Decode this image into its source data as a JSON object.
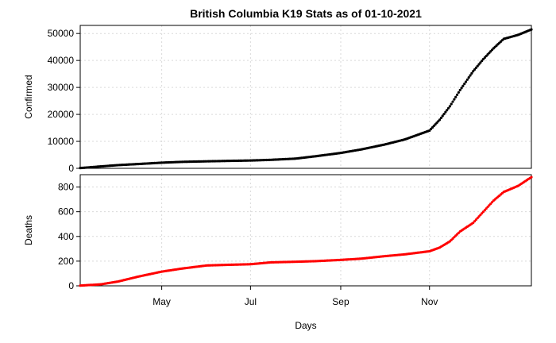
{
  "chart_data": {
    "title": "British Columbia K19 Stats as of 01-10-2021",
    "xlabel": "Days",
    "grid": true,
    "x_range": [
      "2021-03-06",
      "2022-01-10"
    ],
    "x_ticks": [
      {
        "date": "2021-05-01",
        "label": "May"
      },
      {
        "date": "2021-07-01",
        "label": "Jul"
      },
      {
        "date": "2021-09-01",
        "label": "Sep"
      },
      {
        "date": "2021-11-01",
        "label": "Nov"
      }
    ],
    "panels": [
      {
        "type": "scatter",
        "ylabel": "Confirmed",
        "color": "#000000",
        "ylim": [
          0,
          53000
        ],
        "y_ticks": [
          0,
          10000,
          20000,
          30000,
          40000,
          50000
        ],
        "points": [
          [
            "2021-03-06",
            100
          ],
          [
            "2021-03-20",
            700
          ],
          [
            "2021-04-01",
            1200
          ],
          [
            "2021-04-15",
            1600
          ],
          [
            "2021-05-01",
            2100
          ],
          [
            "2021-05-15",
            2400
          ],
          [
            "2021-06-01",
            2600
          ],
          [
            "2021-06-15",
            2750
          ],
          [
            "2021-07-01",
            2900
          ],
          [
            "2021-07-15",
            3150
          ],
          [
            "2021-08-01",
            3600
          ],
          [
            "2021-08-15",
            4500
          ],
          [
            "2021-09-01",
            5700
          ],
          [
            "2021-09-15",
            7000
          ],
          [
            "2021-10-01",
            8800
          ],
          [
            "2021-10-15",
            10700
          ],
          [
            "2021-11-01",
            14000
          ],
          [
            "2021-11-08",
            18000
          ],
          [
            "2021-11-15",
            23000
          ],
          [
            "2021-11-22",
            29000
          ],
          [
            "2021-12-01",
            36000
          ],
          [
            "2021-12-08",
            40500
          ],
          [
            "2021-12-15",
            44500
          ],
          [
            "2021-12-22",
            48000
          ],
          [
            "2022-01-01",
            49500
          ],
          [
            "2022-01-10",
            51500
          ]
        ]
      },
      {
        "type": "scatter",
        "ylabel": "Deaths",
        "color": "#ff0000",
        "ylim": [
          0,
          900
        ],
        "y_ticks": [
          0,
          200,
          400,
          600,
          800
        ],
        "points": [
          [
            "2021-03-06",
            2
          ],
          [
            "2021-03-20",
            12
          ],
          [
            "2021-04-01",
            35
          ],
          [
            "2021-04-15",
            75
          ],
          [
            "2021-05-01",
            115
          ],
          [
            "2021-05-15",
            140
          ],
          [
            "2021-06-01",
            165
          ],
          [
            "2021-06-15",
            170
          ],
          [
            "2021-07-01",
            175
          ],
          [
            "2021-07-15",
            190
          ],
          [
            "2021-08-01",
            195
          ],
          [
            "2021-08-15",
            200
          ],
          [
            "2021-09-01",
            210
          ],
          [
            "2021-09-15",
            220
          ],
          [
            "2021-10-01",
            240
          ],
          [
            "2021-10-15",
            255
          ],
          [
            "2021-11-01",
            280
          ],
          [
            "2021-11-08",
            310
          ],
          [
            "2021-11-15",
            360
          ],
          [
            "2021-11-22",
            440
          ],
          [
            "2021-12-01",
            510
          ],
          [
            "2021-12-08",
            600
          ],
          [
            "2021-12-15",
            690
          ],
          [
            "2021-12-22",
            760
          ],
          [
            "2022-01-01",
            810
          ],
          [
            "2022-01-10",
            880
          ]
        ]
      }
    ]
  }
}
